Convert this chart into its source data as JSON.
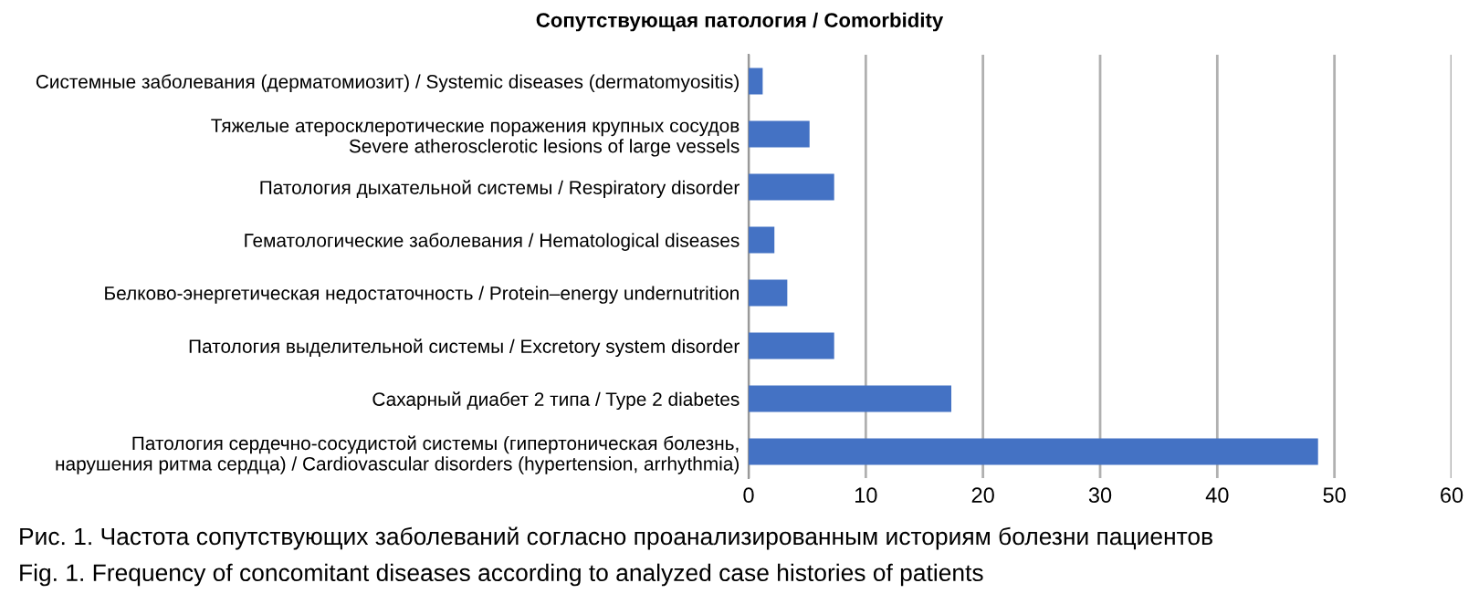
{
  "chart_data": {
    "type": "bar",
    "orientation": "horizontal",
    "title": "Сопутствующая патология / Comorbidity",
    "categories": [
      "Системные заболевания (дерматомиозит) / Systemic diseases (dermatomyositis)",
      "Тяжелые атеросклеротические поражения крупных сосудов\nSevere atherosclerotic lesions of large vessels",
      "Патология дыхательной системы / Respiratory disorder",
      "Гематологические заболевания / Hematological diseases",
      "Белково-энергетическая недостаточность / Protein–energy undernutrition",
      "Патология выделительной системы / Excretory system disorder",
      "Сахарный диабет 2 типа / Type 2 diabetes",
      "Патология сердечно-сосудистой системы (гипертоническая болезнь,\nнарушения ритма сердца) / Cardiovascular disorders (hypertension, arrhythmia)"
    ],
    "values": [
      1.2,
      5.2,
      7.3,
      2.2,
      3.3,
      7.3,
      17.3,
      48.6
    ],
    "color": "#4472c4",
    "xlim": [
      0,
      60
    ],
    "xticks": [
      0,
      10,
      20,
      30,
      40,
      50,
      60
    ],
    "grid": "x",
    "annotations": [
      "Рис. 1. Частота сопутствующих заболеваний согласно проанализированным историям болезни пациентов",
      "Fig. 1. Frequency of concomitant diseases according to analyzed case histories of patients"
    ]
  }
}
